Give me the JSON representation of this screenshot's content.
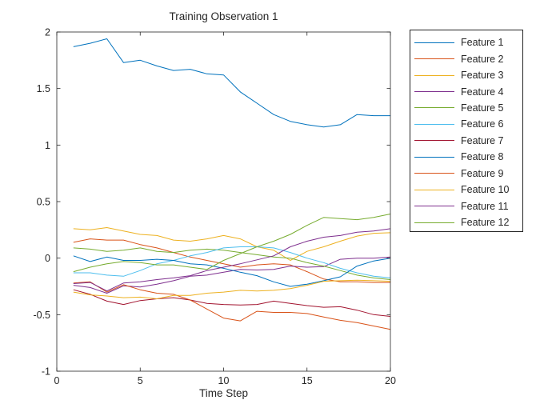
{
  "figure": {
    "title": "Training Observation 1",
    "background": "#ffffff",
    "axis_color": "#262626",
    "text_color": "#262626"
  },
  "chart_data": {
    "type": "line",
    "title": "Training Observation 1",
    "xlabel": "Time Step",
    "ylabel": "",
    "xlim": [
      0,
      20
    ],
    "ylim": [
      -1,
      2
    ],
    "x_tick_labels": [
      "0",
      "5",
      "10",
      "15",
      "20"
    ],
    "x_ticks": [
      0,
      5,
      10,
      15,
      20
    ],
    "y_tick_labels": [
      "-1",
      "-0.5",
      "0",
      "0.5",
      "1",
      "1.5",
      "2"
    ],
    "y_ticks": [
      -1,
      -0.5,
      0,
      0.5,
      1,
      1.5,
      2
    ],
    "grid": false,
    "legend_position": "outside-right",
    "x": [
      1,
      2,
      3,
      4,
      5,
      6,
      7,
      8,
      9,
      10,
      11,
      12,
      13,
      14,
      15,
      16,
      17,
      18,
      19,
      20
    ],
    "series": [
      {
        "name": "Feature 1",
        "color": "#0072BD",
        "values": [
          1.87,
          1.9,
          1.94,
          1.73,
          1.75,
          1.7,
          1.66,
          1.67,
          1.63,
          1.62,
          1.47,
          1.37,
          1.27,
          1.21,
          1.18,
          1.16,
          1.18,
          1.27,
          1.26,
          1.26
        ]
      },
      {
        "name": "Feature 2",
        "color": "#D95319",
        "values": [
          0.14,
          0.17,
          0.16,
          0.16,
          0.12,
          0.09,
          0.05,
          0.01,
          -0.02,
          -0.05,
          -0.08,
          -0.06,
          -0.05,
          -0.06,
          -0.12,
          -0.185,
          -0.21,
          -0.21,
          -0.215,
          -0.215
        ]
      },
      {
        "name": "Feature 3",
        "color": "#EDB120",
        "values": [
          0.26,
          0.25,
          0.27,
          0.24,
          0.21,
          0.2,
          0.16,
          0.15,
          0.17,
          0.2,
          0.17,
          0.1,
          0.07,
          -0.02,
          0.06,
          0.1,
          0.15,
          0.195,
          0.22,
          0.225
        ]
      },
      {
        "name": "Feature 4",
        "color": "#7E2F8E",
        "values": [
          -0.24,
          -0.26,
          -0.31,
          -0.245,
          -0.255,
          -0.23,
          -0.2,
          -0.16,
          -0.15,
          -0.125,
          -0.1,
          -0.105,
          -0.1,
          -0.07,
          -0.08,
          -0.075,
          -0.01,
          0.0,
          0.0,
          0.01
        ]
      },
      {
        "name": "Feature 5",
        "color": "#77AC30",
        "values": [
          0.09,
          0.08,
          0.06,
          0.07,
          0.09,
          0.06,
          0.05,
          0.07,
          0.08,
          0.07,
          0.05,
          0.03,
          0.01,
          0.0,
          -0.04,
          -0.07,
          -0.11,
          -0.15,
          -0.175,
          -0.19
        ]
      },
      {
        "name": "Feature 6",
        "color": "#4DBEEE",
        "values": [
          -0.13,
          -0.13,
          -0.15,
          -0.16,
          -0.11,
          -0.05,
          -0.02,
          0.02,
          0.05,
          0.09,
          0.1,
          0.1,
          0.09,
          0.05,
          0.0,
          -0.04,
          -0.09,
          -0.13,
          -0.16,
          -0.175
        ]
      },
      {
        "name": "Feature 7",
        "color": "#A2142F",
        "values": [
          -0.28,
          -0.32,
          -0.38,
          -0.41,
          -0.375,
          -0.36,
          -0.35,
          -0.37,
          -0.4,
          -0.41,
          -0.415,
          -0.41,
          -0.38,
          -0.4,
          -0.42,
          -0.435,
          -0.43,
          -0.46,
          -0.5,
          -0.515
        ]
      },
      {
        "name": "Feature 8",
        "color": "#0072BD",
        "values": [
          0.02,
          -0.03,
          0.01,
          -0.02,
          -0.02,
          -0.01,
          -0.02,
          -0.05,
          -0.06,
          -0.09,
          -0.125,
          -0.155,
          -0.21,
          -0.25,
          -0.23,
          -0.2,
          -0.165,
          -0.07,
          -0.025,
          0.0
        ]
      },
      {
        "name": "Feature 9",
        "color": "#D95319",
        "values": [
          -0.22,
          -0.21,
          -0.3,
          -0.235,
          -0.28,
          -0.31,
          -0.32,
          -0.37,
          -0.45,
          -0.53,
          -0.555,
          -0.47,
          -0.48,
          -0.48,
          -0.49,
          -0.52,
          -0.55,
          -0.57,
          -0.6,
          -0.63
        ]
      },
      {
        "name": "Feature 10",
        "color": "#EDB120",
        "values": [
          -0.3,
          -0.325,
          -0.335,
          -0.35,
          -0.345,
          -0.36,
          -0.33,
          -0.33,
          -0.31,
          -0.3,
          -0.285,
          -0.29,
          -0.285,
          -0.27,
          -0.24,
          -0.205,
          -0.2,
          -0.195,
          -0.2,
          -0.205
        ]
      },
      {
        "name": "Feature 11",
        "color": "#7E2F8E",
        "values": [
          -0.225,
          -0.215,
          -0.29,
          -0.22,
          -0.21,
          -0.19,
          -0.175,
          -0.155,
          -0.11,
          -0.08,
          -0.05,
          -0.015,
          0.02,
          0.1,
          0.15,
          0.185,
          0.2,
          0.23,
          0.24,
          0.26
        ]
      },
      {
        "name": "Feature 12",
        "color": "#77AC30",
        "values": [
          -0.12,
          -0.08,
          -0.05,
          -0.03,
          -0.04,
          -0.06,
          -0.06,
          -0.08,
          -0.1,
          -0.02,
          0.04,
          0.1,
          0.15,
          0.21,
          0.29,
          0.36,
          0.35,
          0.34,
          0.36,
          0.39
        ]
      }
    ]
  },
  "legend": {
    "items": [
      "Feature 1",
      "Feature 2",
      "Feature 3",
      "Feature 4",
      "Feature 5",
      "Feature 6",
      "Feature 7",
      "Feature 8",
      "Feature 9",
      "Feature 10",
      "Feature 11",
      "Feature 12"
    ]
  }
}
